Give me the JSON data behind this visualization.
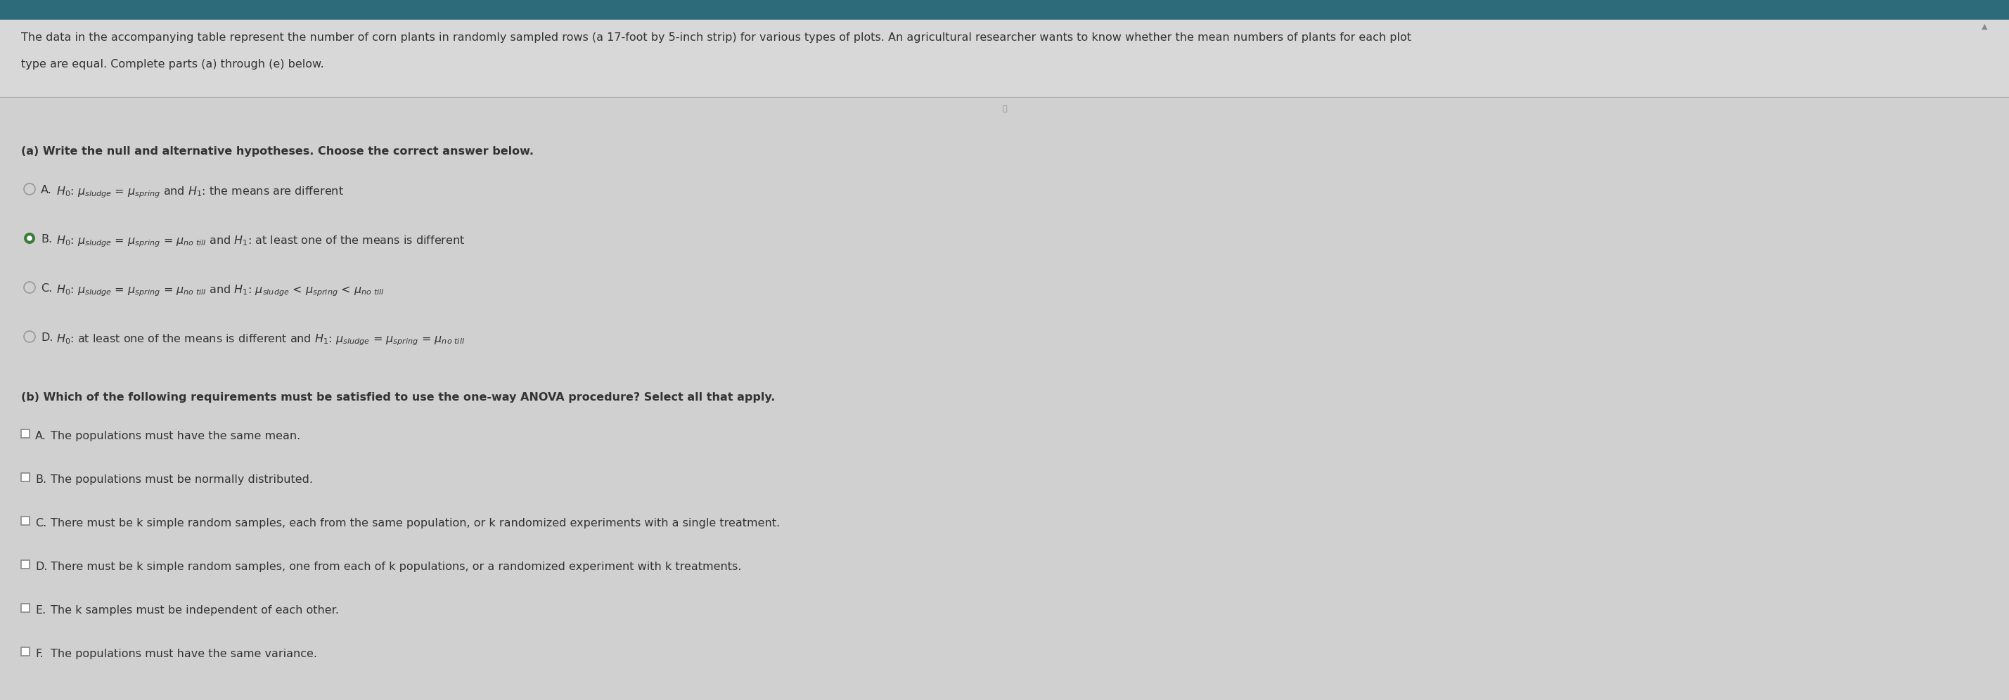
{
  "bg_color": "#d4d4d4",
  "header_bg": "#c8c8c8",
  "header_text_line1": "The data in the accompanying table represent the number of corn plants in randomly sampled rows (a 17-foot by 5-inch strip) for various types of plots. An agricultural researcher wants to know whether the mean numbers of plants for each plot",
  "header_text_line2": "type are equal. Complete parts (a) through (e) below.",
  "section_a_label": "(a) Write the null and alternative hypotheses. Choose the correct answer below.",
  "options_a": [
    {
      "letter": "A.",
      "selected": false,
      "text": "$H_0$: $\\mu_{sludge}$ = $\\mu_{spring}$ and $H_1$: the means are different"
    },
    {
      "letter": "B.",
      "selected": true,
      "text": "$H_0$: $\\mu_{sludge}$ = $\\mu_{spring}$ = $\\mu_{no\\ till}$ and $H_1$: at least one of the means is different"
    },
    {
      "letter": "C.",
      "selected": false,
      "text": "$H_0$: $\\mu_{sludge}$ = $\\mu_{spring}$ = $\\mu_{no\\ till}$ and $H_1$: $\\mu_{sludge}$ < $\\mu_{spring}$ < $\\mu_{no\\ till}$"
    },
    {
      "letter": "D.",
      "selected": false,
      "text": "$H_0$: at least one of the means is different and $H_1$: $\\mu_{sludge}$ = $\\mu_{spring}$ = $\\mu_{no\\ till}$"
    }
  ],
  "section_b_label": "(b) Which of the following requirements must be satisfied to use the one-way ANOVA procedure? Select all that apply.",
  "options_b": [
    {
      "letter": "A.",
      "text": "The populations must have the same mean."
    },
    {
      "letter": "B.",
      "text": "The populations must be normally distributed."
    },
    {
      "letter": "C.",
      "text": "There must be k simple random samples, each from the same population, or k randomized experiments with a single treatment."
    },
    {
      "letter": "D.",
      "text": "There must be k simple random samples, one from each of k populations, or a randomized experiment with k treatments."
    },
    {
      "letter": "E.",
      "text": "The k samples must be independent of each other."
    },
    {
      "letter": "F.",
      "text": "The populations must have the same variance."
    }
  ],
  "text_color": "#333333",
  "header_text_color": "#333333",
  "radio_color_empty": "#888888",
  "radio_color_selected": "#3a7d3a",
  "checkbox_edge_color": "#888888",
  "font_size_header": 11.5,
  "font_size_section": 11.5,
  "font_size_option": 11.5
}
